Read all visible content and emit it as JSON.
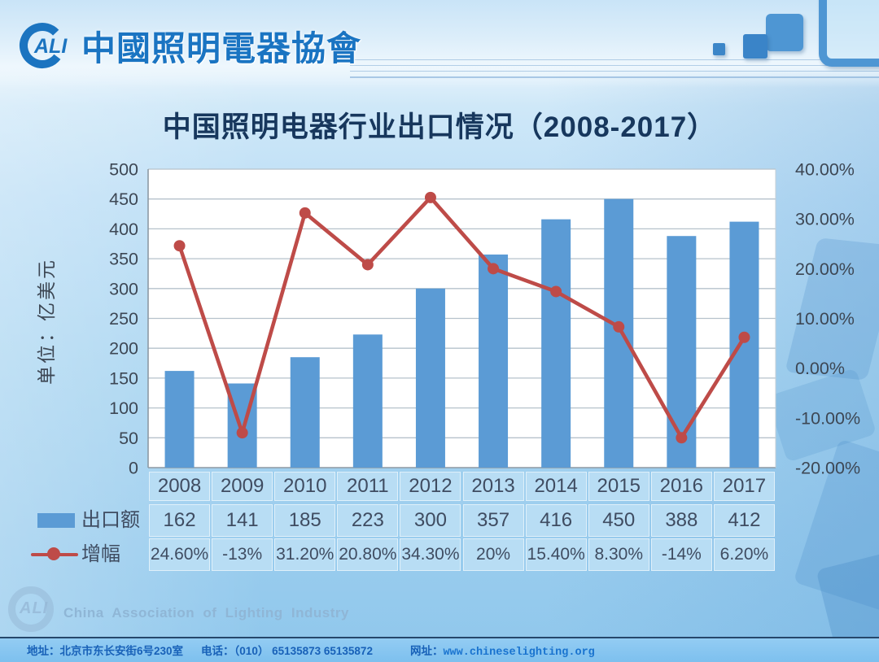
{
  "header": {
    "logo_text": "ALI",
    "org_name": "中國照明電器協會"
  },
  "title": "中国照明电器行业出口情况（2008-2017）",
  "chart_data": {
    "type": "bar",
    "title": "中国照明电器行业出口情况（2008-2017）",
    "categories": [
      "2008",
      "2009",
      "2010",
      "2011",
      "2012",
      "2013",
      "2014",
      "2015",
      "2016",
      "2017"
    ],
    "series": [
      {
        "name": "出口额",
        "type": "bar",
        "axis": "left",
        "color": "#5b9bd5",
        "values": [
          162,
          141,
          185,
          223,
          300,
          357,
          416,
          450,
          388,
          412
        ]
      },
      {
        "name": "增幅",
        "type": "line",
        "axis": "right",
        "color": "#be4b48",
        "values": [
          24.6,
          -13,
          31.2,
          20.8,
          34.3,
          20,
          15.4,
          8.3,
          -14,
          6.2
        ],
        "display": [
          "24.60%",
          "-13%",
          "31.20%",
          "20.80%",
          "34.30%",
          "20%",
          "15.40%",
          "8.30%",
          "-14%",
          "6.20%"
        ]
      }
    ],
    "left_axis": {
      "label": "单位：亿美元",
      "min": 0,
      "max": 500,
      "step": 50,
      "tick_labels": [
        "500",
        "450",
        "400",
        "350",
        "300",
        "250",
        "200",
        "150",
        "100",
        "50",
        "0"
      ],
      "tick_values": [
        500,
        450,
        400,
        350,
        300,
        250,
        200,
        150,
        100,
        50,
        0
      ]
    },
    "right_axis": {
      "min": -20,
      "max": 40,
      "step": 10,
      "tick_labels": [
        "40.00%",
        "30.00%",
        "20.00%",
        "10.00%",
        "0.00%",
        "-10.00%",
        "-20.00%"
      ],
      "tick_values": [
        40,
        30,
        20,
        10,
        0,
        -10,
        -20
      ]
    },
    "grid": true,
    "legend_position": "table-left"
  },
  "footer": {
    "watermark": "China Association of Lighting Industry",
    "address_label": "地址：",
    "address": "北京市东长安街6号230室",
    "phone_label": "电话：",
    "phone": "（010） 65135873 65135872",
    "web_label": "网址：",
    "website": "www.chineselighting.org"
  }
}
